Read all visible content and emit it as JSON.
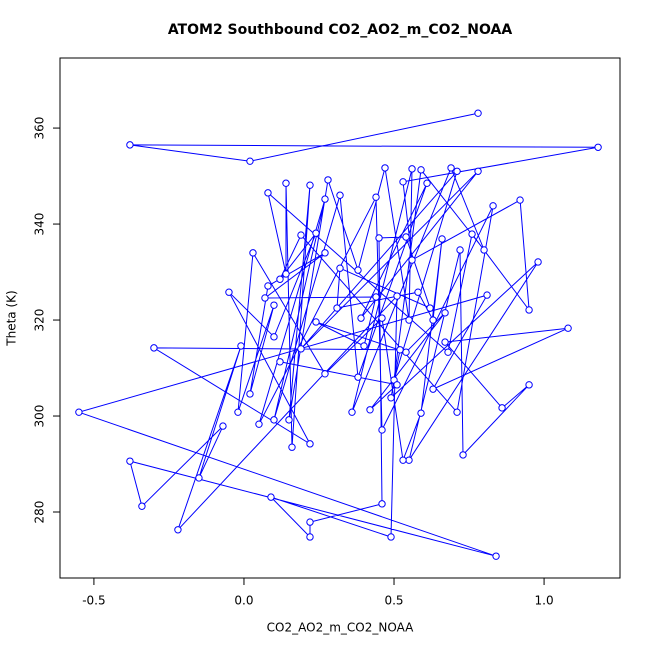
{
  "chart_data": {
    "type": "scatter",
    "line": true,
    "title": "ATOM2 Southbound CO2_AO2_m_CO2_NOAA",
    "x_label": "CO2_AO2_m_CO2_NOAA",
    "y_label": "Theta (K)",
    "color": "#0000ff",
    "xlim": [
      -0.613,
      1.253
    ],
    "ylim": [
      266.25,
      374.6
    ],
    "xticks": [
      -0.5,
      {
        "value": 0,
        "label": "0.0"
      },
      0.5,
      {
        "value": 1,
        "label": "1.0"
      }
    ],
    "yticks": [
      280,
      300,
      320,
      340,
      360
    ],
    "x": [
      0.78,
      0.02,
      -0.38,
      1.18,
      0.53,
      0.56,
      0.92,
      0.95,
      0.76,
      0.68,
      0.08,
      0.14,
      0.14,
      0.16,
      0.22,
      0.15,
      0.28,
      0.38,
      0.47,
      0.55,
      0.56,
      0.36,
      0.69,
      0.8,
      0.59,
      0.5,
      0.71,
      0.19,
      0.78,
      0.39,
      0.61,
      0.38,
      0.32,
      0.1,
      0.27,
      0.05,
      0.44,
      0.46,
      0.83,
      0.71,
      0.19,
      0.12,
      0.24,
      0.1,
      -0.05,
      0.22,
      -0.3,
      0.52,
      0.49,
      0.98,
      0.55,
      0.72,
      0.73,
      0.95,
      0.86,
      0.67,
      1.08,
      0.63,
      0.81,
      -0.55,
      0.84,
      -0.38,
      -0.34,
      -0.07,
      -0.15,
      -0.01,
      -0.22,
      0.51,
      0.49,
      0.09,
      0.22,
      0.22,
      0.46,
      0.45,
      0.54,
      0.62,
      0.32,
      0.31,
      0.58,
      0.63,
      0.66,
      0.59,
      0.53,
      0.46,
      0.27,
      0.03,
      -0.02,
      0.1,
      0.02,
      0.08,
      0.27,
      0.07,
      0.44,
      0.4,
      0.24,
      0.54,
      0.67,
      0.42,
      0.51,
      0.12
    ],
    "values": [
      363.1,
      353.1,
      356.5,
      356.0,
      348.8,
      332.5,
      345.0,
      322.1,
      337.9,
      313.3,
      346.5,
      329.6,
      348.5,
      293.5,
      348.1,
      299.2,
      349.2,
      330.4,
      351.7,
      320.0,
      351.5,
      300.8,
      351.7,
      334.6,
      351.3,
      307.5,
      351.0,
      314.0,
      351.0,
      320.4,
      348.5,
      308.1,
      346.0,
      299.2,
      345.2,
      298.3,
      345.6,
      297.1,
      343.8,
      300.8,
      337.7,
      328.5,
      338.1,
      316.5,
      325.8,
      294.2,
      314.2,
      313.8,
      303.8,
      332.1,
      290.8,
      334.6,
      291.9,
      306.5,
      301.7,
      315.4,
      318.3,
      305.6,
      325.2,
      300.8,
      270.8,
      290.6,
      281.2,
      297.9,
      287.1,
      314.6,
      276.3,
      325.0,
      274.8,
      283.1,
      274.8,
      277.9,
      281.7,
      337.1,
      337.3,
      322.5,
      330.8,
      322.5,
      325.8,
      320.0,
      336.9,
      300.6,
      290.8,
      320.4,
      308.8,
      334.0,
      300.8,
      323.1,
      304.6,
      327.1,
      334.0,
      324.6,
      324.8,
      314.6,
      319.6,
      313.3,
      321.5,
      301.3,
      306.5,
      311.3
    ]
  }
}
